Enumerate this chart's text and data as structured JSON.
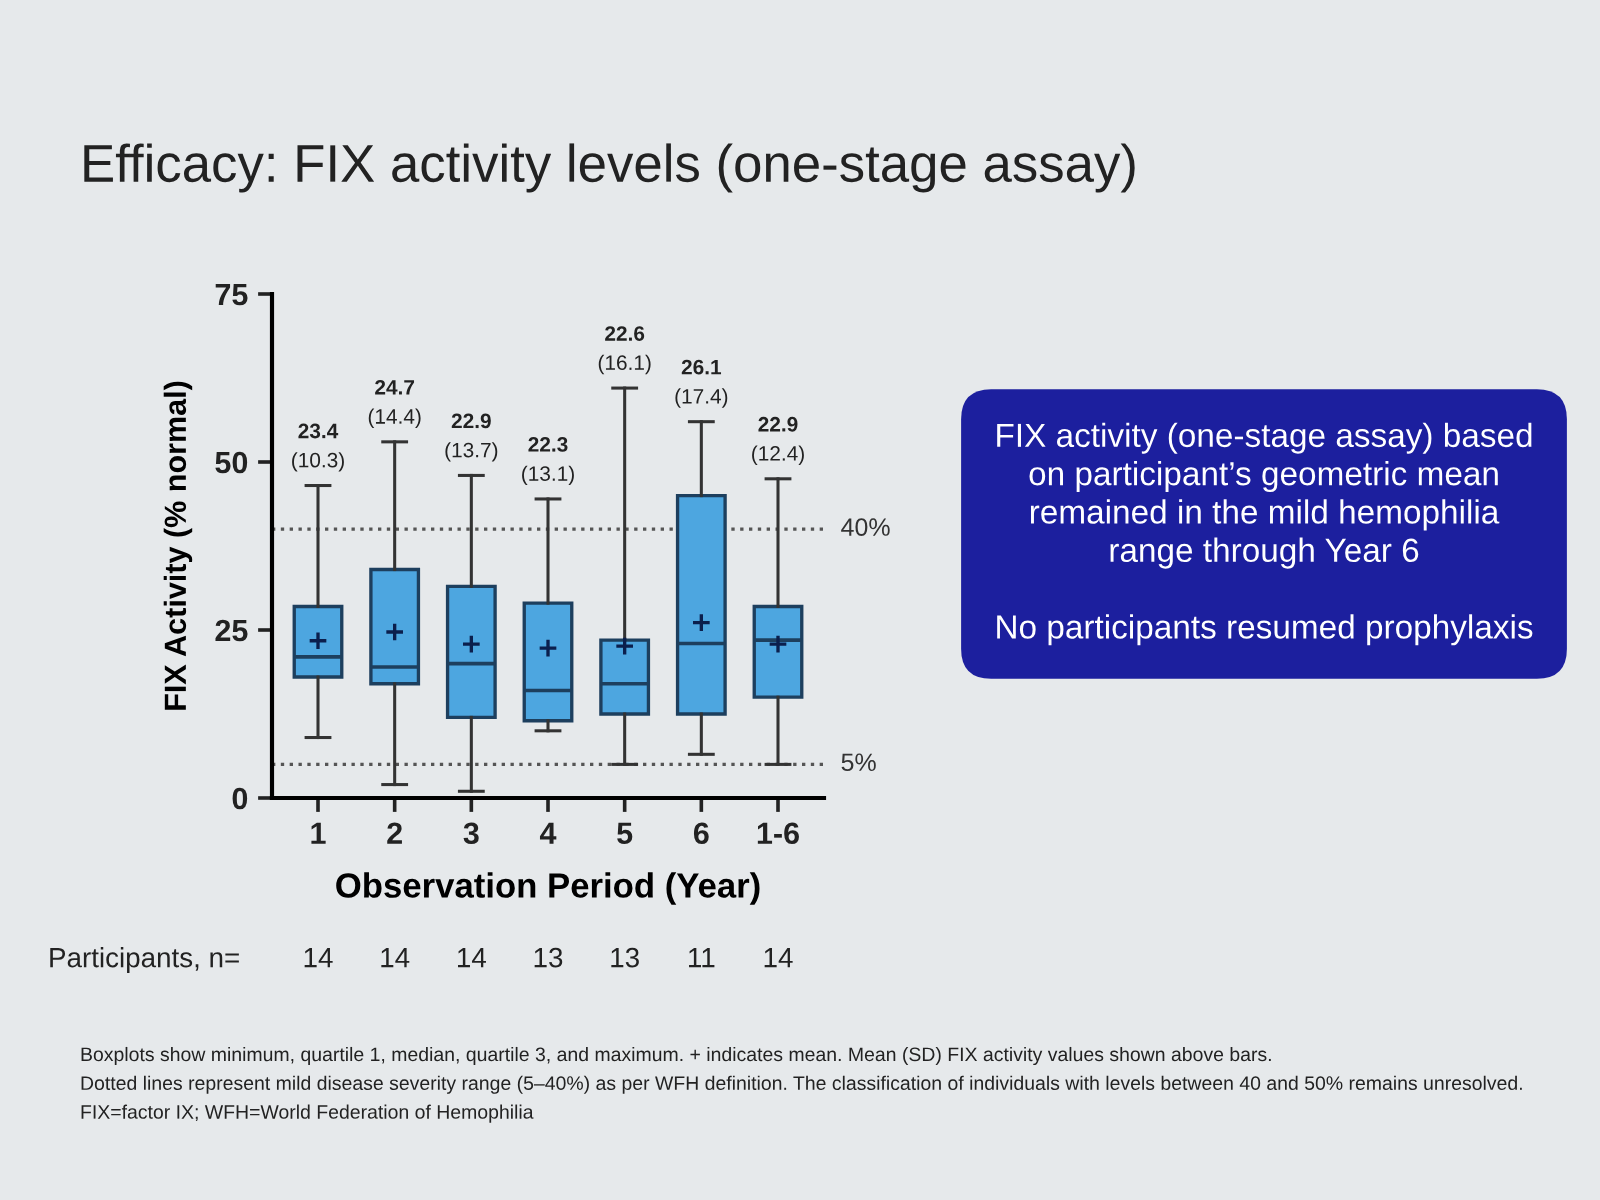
{
  "chart_data": {
    "type": "box",
    "title": "Efficacy: FIX activity levels (one-stage assay)",
    "xlabel": "Observation Period (Year)",
    "ylabel": "FIX Activity (% normal)",
    "categories": [
      "1",
      "2",
      "3",
      "4",
      "5",
      "6",
      "1-6"
    ],
    "boxes": [
      {
        "low": 9,
        "q1": 18,
        "median": 21,
        "q3": 28.5,
        "high": 46.5,
        "mean": 23.4
      },
      {
        "low": 2,
        "q1": 17,
        "median": 19.5,
        "q3": 34,
        "high": 53,
        "mean": 24.7
      },
      {
        "low": 1,
        "q1": 12,
        "median": 20,
        "q3": 31.5,
        "high": 48,
        "mean": 22.9
      },
      {
        "low": 10,
        "q1": 11.5,
        "median": 16,
        "q3": 29,
        "high": 44.5,
        "mean": 22.3
      },
      {
        "low": 5,
        "q1": 12.5,
        "median": 17,
        "q3": 23.5,
        "high": 61,
        "mean": 22.6
      },
      {
        "low": 6.5,
        "q1": 12.5,
        "median": 23,
        "q3": 45,
        "high": 56,
        "mean": 26.1
      },
      {
        "low": 5,
        "q1": 15,
        "median": 23.5,
        "q3": 28.5,
        "high": 47.5,
        "mean": 22.9
      }
    ],
    "color": "#4da6e0",
    "ylim": [
      0,
      75
    ],
    "yticks": [
      0,
      25,
      50,
      75
    ],
    "ref_lines": [
      {
        "axis": "y",
        "value": 40,
        "label": "40%",
        "color": "#555555",
        "line_style": "dotted"
      },
      {
        "axis": "y",
        "value": 5,
        "label": "5%",
        "color": "#555555",
        "line_style": "dotted"
      }
    ],
    "value_labels": [
      "23.4\n(10.3)",
      "24.7\n(14.4)",
      "22.9\n(13.7)",
      "22.3\n(13.1)",
      "22.6\n(16.1)",
      "26.1\n(17.4)",
      "22.9\n(12.4)"
    ],
    "annotations": [
      "FIX activity (one-stage assay) based\non participant’s geometric mean\nremained in the mild hemophilia\nrange through Year 6",
      "No participants resumed prophylaxis",
      "Participants, n=",
      "14",
      "14",
      "14",
      "13",
      "13",
      "11",
      "14",
      "Boxplots show minimum, quartile 1, median, quartile 3, and maximum. + indicates mean. Mean (SD) FIX activity values shown above bars.",
      "Dotted lines represent mild disease severity range (5–40%) as per WFH definition. The classification of individuals with levels between 40 and 50% remains unresolved.",
      "FIX=factor IX; WFH=World Federation of Hemophilia"
    ]
  }
}
